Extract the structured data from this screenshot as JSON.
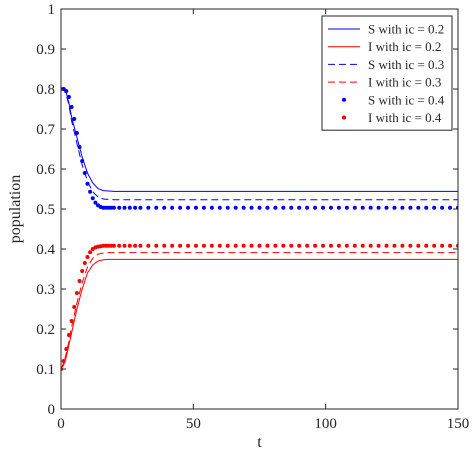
{
  "chart_data": {
    "type": "line",
    "xlabel": "t",
    "ylabel": "population",
    "xlim": [
      0,
      150
    ],
    "ylim": [
      0,
      1
    ],
    "xticks": [
      0,
      50,
      100,
      150
    ],
    "yticks": [
      0,
      0.1,
      0.2,
      0.3,
      0.4,
      0.5,
      0.6,
      0.7,
      0.8,
      0.9,
      1
    ],
    "grid": false,
    "legend_position": "top-right",
    "series": [
      {
        "name": "S with ic = 0.2",
        "color": "#0000ff",
        "style": "solid",
        "x": [
          0,
          1,
          2,
          3,
          4,
          6,
          8,
          10,
          12,
          14,
          16,
          18,
          20,
          25,
          30,
          40,
          60,
          80,
          100,
          120,
          150
        ],
        "y": [
          0.8,
          0.8,
          0.79,
          0.765,
          0.73,
          0.68,
          0.63,
          0.59,
          0.565,
          0.551,
          0.546,
          0.545,
          0.544,
          0.544,
          0.544,
          0.544,
          0.544,
          0.544,
          0.544,
          0.544,
          0.544
        ]
      },
      {
        "name": "I with ic = 0.2",
        "color": "#ff0000",
        "style": "solid",
        "x": [
          0,
          1,
          2,
          3,
          4,
          6,
          8,
          10,
          12,
          14,
          16,
          18,
          20,
          25,
          30,
          40,
          60,
          80,
          100,
          120,
          150
        ],
        "y": [
          0.1,
          0.11,
          0.13,
          0.16,
          0.19,
          0.25,
          0.3,
          0.34,
          0.36,
          0.37,
          0.373,
          0.374,
          0.374,
          0.374,
          0.374,
          0.374,
          0.374,
          0.374,
          0.374,
          0.374,
          0.374
        ]
      },
      {
        "name": "S with ic = 0.3",
        "color": "#0000ff",
        "style": "dashed",
        "x": [
          0,
          1,
          2,
          3,
          4,
          6,
          8,
          10,
          12,
          14,
          16,
          18,
          20,
          25,
          30,
          40,
          60,
          80,
          100,
          120,
          150
        ],
        "y": [
          0.8,
          0.8,
          0.785,
          0.76,
          0.72,
          0.665,
          0.61,
          0.57,
          0.543,
          0.53,
          0.525,
          0.524,
          0.523,
          0.523,
          0.523,
          0.523,
          0.523,
          0.523,
          0.523,
          0.523,
          0.523
        ]
      },
      {
        "name": "I with ic = 0.3",
        "color": "#ff0000",
        "style": "dashed",
        "x": [
          0,
          1,
          2,
          3,
          4,
          6,
          8,
          10,
          12,
          14,
          16,
          18,
          20,
          25,
          30,
          40,
          60,
          80,
          100,
          120,
          150
        ],
        "y": [
          0.1,
          0.115,
          0.14,
          0.17,
          0.205,
          0.265,
          0.315,
          0.355,
          0.377,
          0.387,
          0.39,
          0.391,
          0.391,
          0.391,
          0.391,
          0.391,
          0.391,
          0.391,
          0.391,
          0.391,
          0.391
        ]
      },
      {
        "name": "S with ic = 0.4",
        "color": "#0000ff",
        "style": "dots",
        "x": [
          0,
          1,
          2,
          3,
          4,
          5,
          6,
          7,
          8,
          9,
          10,
          11,
          12,
          13,
          14,
          15,
          16,
          17,
          18,
          19,
          20,
          22,
          24,
          26,
          28,
          30,
          33,
          36,
          39,
          42,
          45,
          48,
          51,
          54,
          57,
          60,
          63,
          66,
          69,
          72,
          75,
          78,
          81,
          84,
          87,
          90,
          93,
          96,
          99,
          102,
          105,
          108,
          111,
          114,
          117,
          120,
          123,
          126,
          129,
          132,
          135,
          138,
          141,
          144,
          147,
          150
        ],
        "y": [
          0.8,
          0.8,
          0.795,
          0.78,
          0.755,
          0.725,
          0.69,
          0.655,
          0.62,
          0.59,
          0.563,
          0.543,
          0.527,
          0.516,
          0.509,
          0.505,
          0.503,
          0.503,
          0.503,
          0.503,
          0.503,
          0.503,
          0.503,
          0.503,
          0.503,
          0.503,
          0.503,
          0.503,
          0.503,
          0.503,
          0.503,
          0.503,
          0.503,
          0.503,
          0.503,
          0.503,
          0.503,
          0.503,
          0.503,
          0.503,
          0.503,
          0.503,
          0.503,
          0.503,
          0.503,
          0.503,
          0.503,
          0.503,
          0.503,
          0.503,
          0.503,
          0.503,
          0.503,
          0.503,
          0.503,
          0.503,
          0.503,
          0.503,
          0.503,
          0.503,
          0.503,
          0.503,
          0.503,
          0.503,
          0.503,
          0.503
        ]
      },
      {
        "name": "I with ic = 0.4",
        "color": "#ff0000",
        "style": "dots",
        "x": [
          0,
          1,
          2,
          3,
          4,
          5,
          6,
          7,
          8,
          9,
          10,
          11,
          12,
          13,
          14,
          15,
          16,
          17,
          18,
          19,
          20,
          22,
          24,
          26,
          28,
          30,
          33,
          36,
          39,
          42,
          45,
          48,
          51,
          54,
          57,
          60,
          63,
          66,
          69,
          72,
          75,
          78,
          81,
          84,
          87,
          90,
          93,
          96,
          99,
          102,
          105,
          108,
          111,
          114,
          117,
          120,
          123,
          126,
          129,
          132,
          135,
          138,
          141,
          144,
          147,
          150
        ],
        "y": [
          0.1,
          0.12,
          0.15,
          0.185,
          0.22,
          0.255,
          0.29,
          0.32,
          0.345,
          0.365,
          0.38,
          0.392,
          0.4,
          0.404,
          0.406,
          0.407,
          0.408,
          0.408,
          0.408,
          0.408,
          0.408,
          0.408,
          0.408,
          0.408,
          0.408,
          0.408,
          0.408,
          0.408,
          0.408,
          0.408,
          0.408,
          0.408,
          0.408,
          0.408,
          0.408,
          0.408,
          0.408,
          0.408,
          0.408,
          0.408,
          0.408,
          0.408,
          0.408,
          0.408,
          0.408,
          0.408,
          0.408,
          0.408,
          0.408,
          0.408,
          0.408,
          0.408,
          0.408,
          0.408,
          0.408,
          0.408,
          0.408,
          0.408,
          0.408,
          0.408,
          0.408,
          0.408,
          0.408,
          0.408,
          0.408,
          0.408
        ]
      }
    ]
  }
}
